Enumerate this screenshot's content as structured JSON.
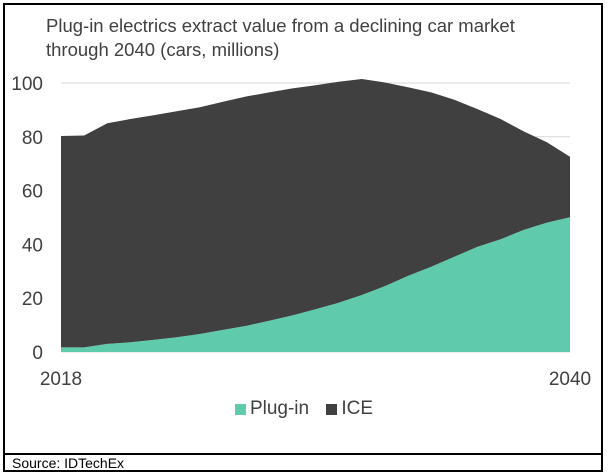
{
  "chart_data": {
    "type": "area",
    "stacked": true,
    "title": "Plug-in electrics extract value from a declining car market through 2040 (cars, millions)",
    "xlabel": "",
    "ylabel": "",
    "x": [
      2018,
      2019,
      2020,
      2021,
      2022,
      2023,
      2024,
      2025,
      2026,
      2027,
      2028,
      2029,
      2030,
      2031,
      2032,
      2033,
      2034,
      2035,
      2036,
      2037,
      2038,
      2039,
      2040
    ],
    "x_tick_labels": [
      "2018",
      "2040"
    ],
    "y_ticks": [
      0,
      20,
      40,
      60,
      80,
      100
    ],
    "ylim": [
      0,
      100
    ],
    "grid": "horizontal",
    "legend_position": "bottom",
    "series": [
      {
        "name": "Plug-in",
        "color": "#5FCBAC",
        "values": [
          1.7,
          1.7,
          3.0,
          3.6,
          4.5,
          5.5,
          6.7,
          8.2,
          9.7,
          11.6,
          13.6,
          15.9,
          18.3,
          21.2,
          24.5,
          28.3,
          31.7,
          35.4,
          39.1,
          41.9,
          45.4,
          48.1,
          50.1
        ]
      },
      {
        "name": "ICE",
        "color": "#404040",
        "values": [
          78.6,
          78.8,
          82.0,
          83.0,
          83.5,
          84.0,
          84.3,
          84.8,
          85.3,
          84.9,
          84.4,
          83.3,
          82.2,
          80.3,
          75.7,
          70.1,
          64.8,
          58.4,
          51.2,
          44.7,
          36.6,
          29.9,
          22.5
        ]
      }
    ]
  },
  "title": "Plug-in electrics extract value from a declining car market through 2040 (cars, millions)",
  "legend": [
    {
      "label": "Plug-in",
      "color": "#5FCBAC"
    },
    {
      "label": "ICE",
      "color": "#404040"
    }
  ],
  "source": "Source: IDTechEx"
}
